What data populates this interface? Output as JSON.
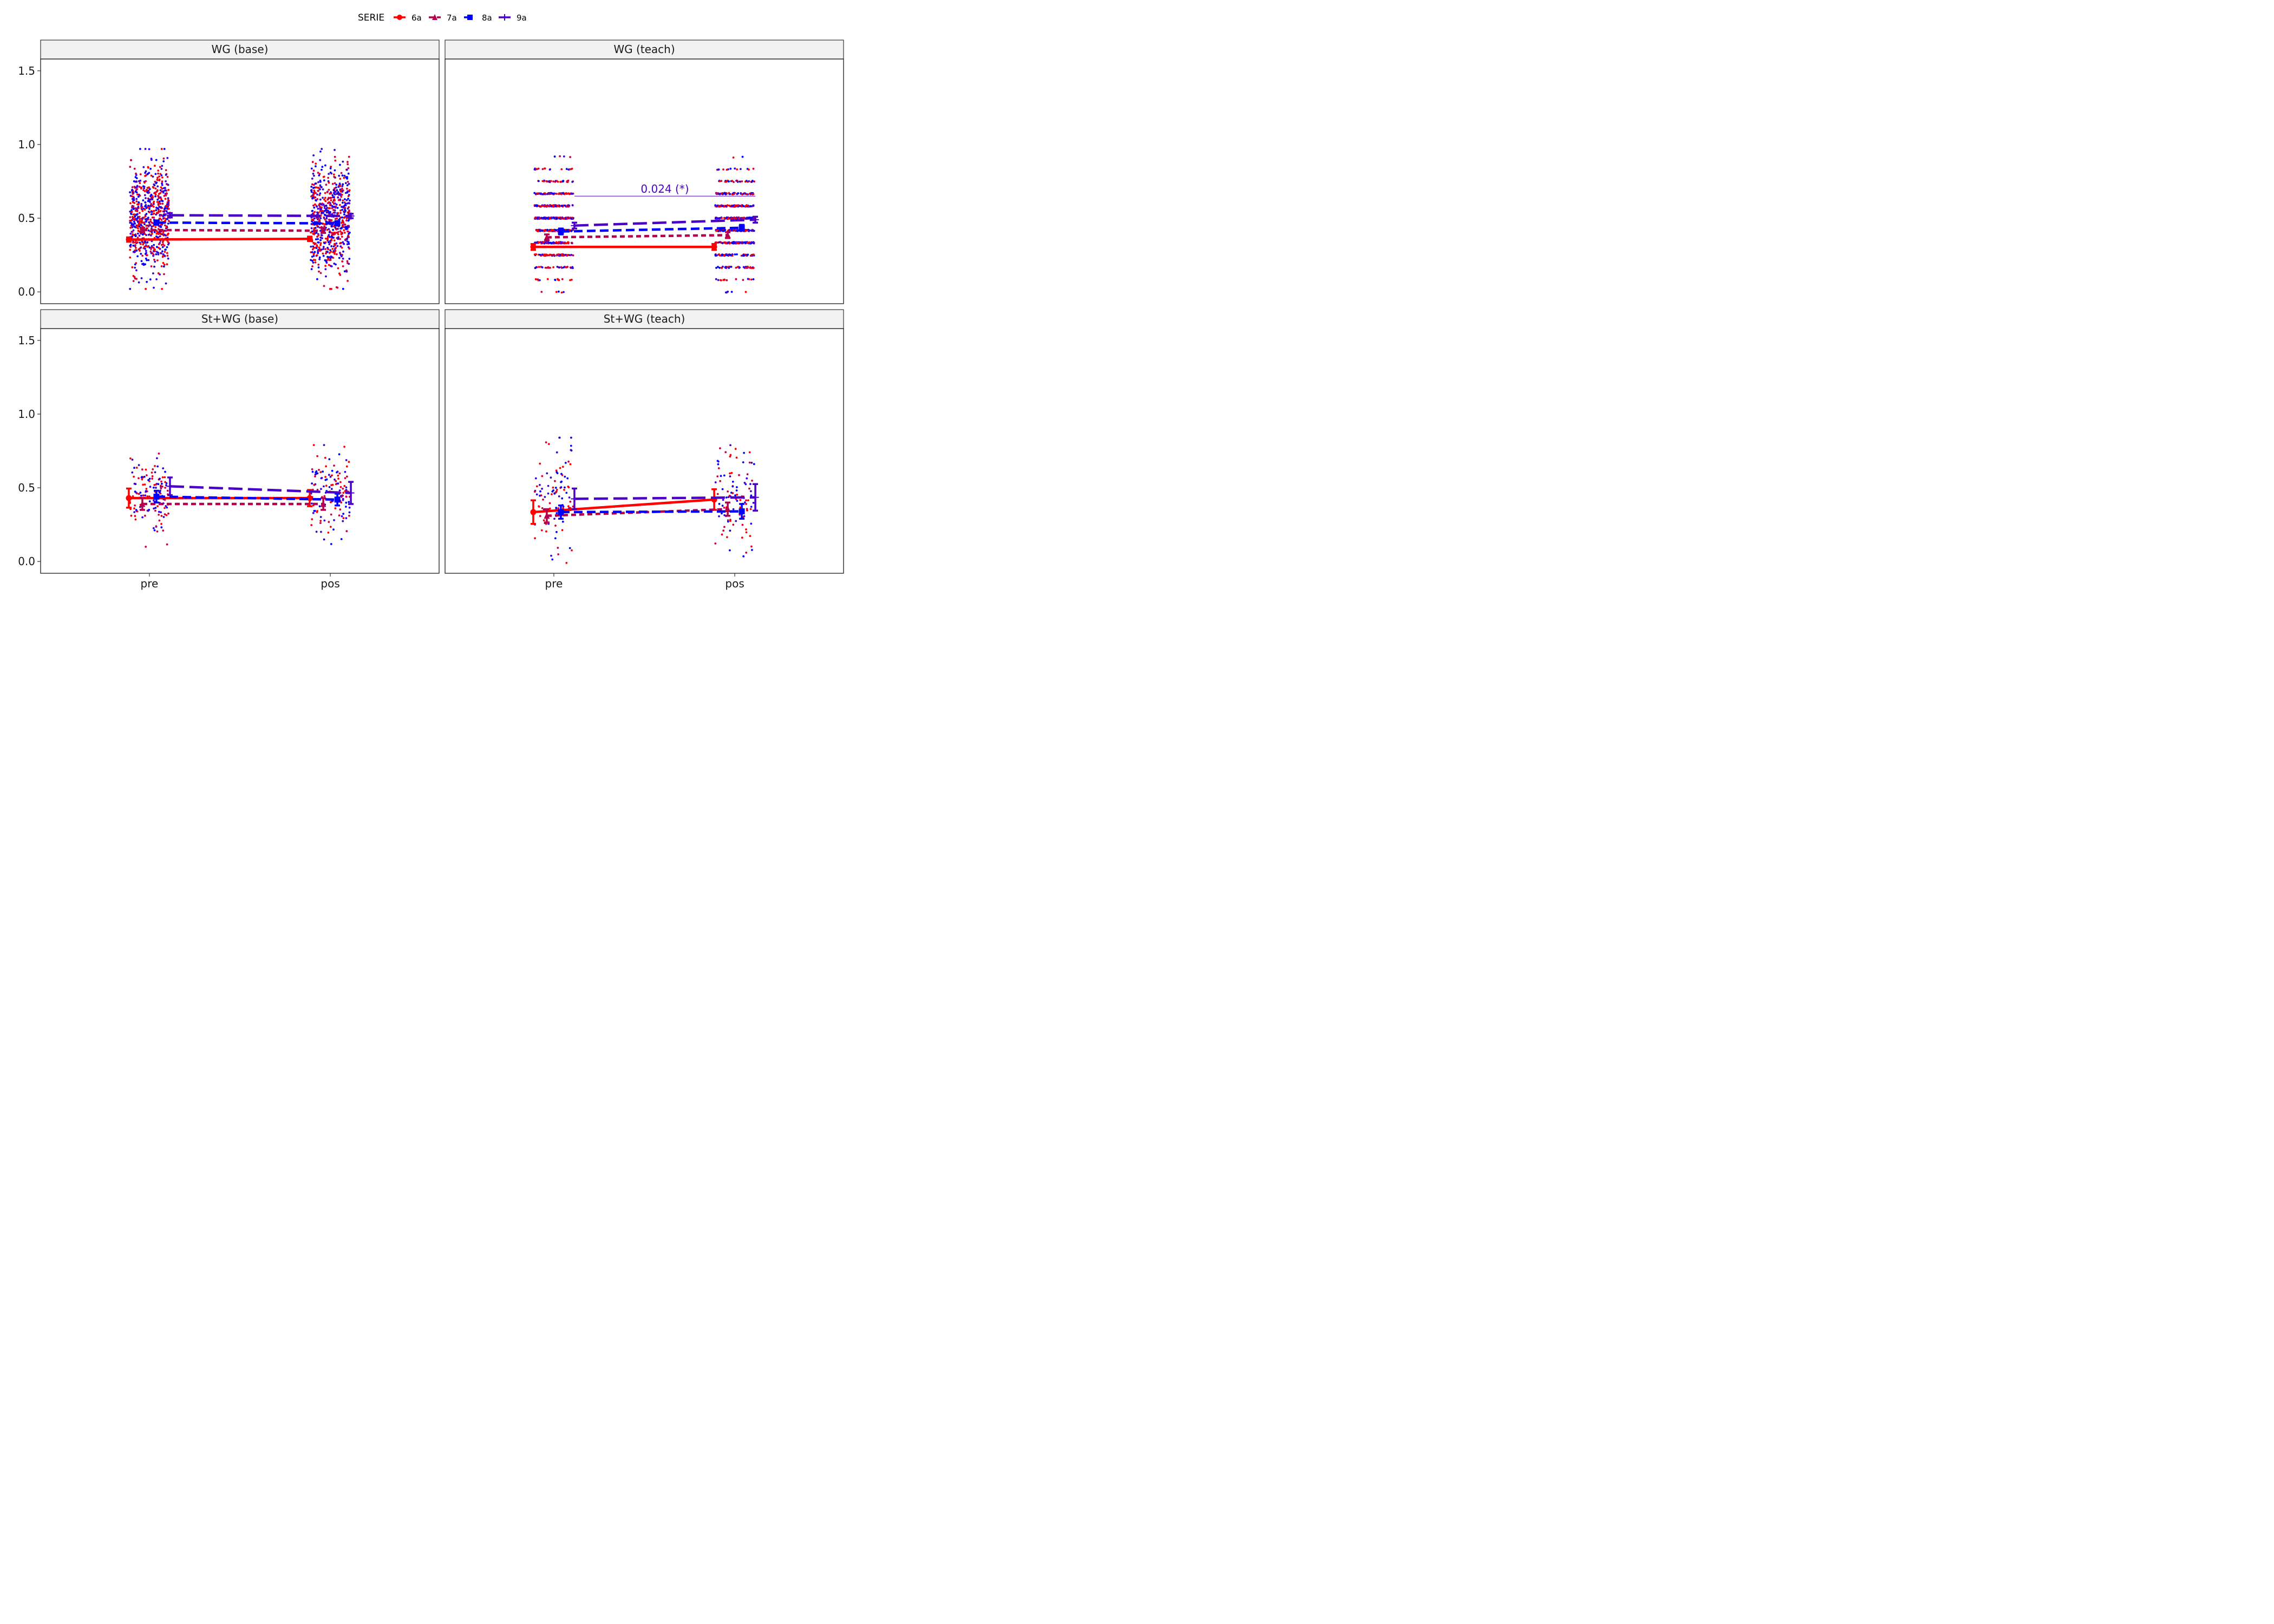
{
  "chart_data": {
    "type": "line",
    "legend": {
      "title": "SERIE",
      "placement": "top",
      "entries": [
        {
          "label": "6a",
          "color": "#ff0000",
          "shape": "circle",
          "linetype": "solid"
        },
        {
          "label": "7a",
          "color": "#b5004f",
          "shape": "triangle",
          "linetype": "dotted"
        },
        {
          "label": "8a",
          "color": "#0000ff",
          "shape": "square",
          "linetype": "dashed"
        },
        {
          "label": "9a",
          "color": "#4b00c8",
          "shape": "cross",
          "linetype": "longdash"
        }
      ]
    },
    "x_categories": [
      "pre",
      "pos"
    ],
    "y_ticks": [
      "0.0",
      "0.5",
      "1.0",
      "1.5"
    ],
    "ylim": [
      -0.08,
      1.58
    ],
    "grid": false,
    "panels": [
      {
        "title": "WG (base)",
        "series": [
          {
            "name": "6a",
            "values": [
              0.355,
              0.36
            ],
            "err": [
              0.015,
              0.015
            ]
          },
          {
            "name": "7a",
            "values": [
              0.42,
              0.415
            ],
            "err": [
              0.015,
              0.015
            ]
          },
          {
            "name": "8a",
            "values": [
              0.47,
              0.465
            ],
            "err": [
              0.015,
              0.015
            ]
          },
          {
            "name": "9a",
            "values": [
              0.52,
              0.515
            ],
            "err": [
              0.015,
              0.015
            ]
          }
        ],
        "points": {
          "y_range": [
            0.02,
            0.97
          ],
          "count_per_column": 700,
          "quantized": false
        }
      },
      {
        "title": "WG (teach)",
        "series": [
          {
            "name": "6a",
            "values": [
              0.305,
              0.305
            ],
            "err": [
              0.02,
              0.02
            ]
          },
          {
            "name": "7a",
            "values": [
              0.37,
              0.385
            ],
            "err": [
              0.02,
              0.02
            ]
          },
          {
            "name": "8a",
            "values": [
              0.41,
              0.435
            ],
            "err": [
              0.02,
              0.02
            ]
          },
          {
            "name": "9a",
            "values": [
              0.45,
              0.49
            ],
            "err": [
              0.02,
              0.02
            ]
          }
        ],
        "annotation": {
          "text": "0.024 (*)",
          "y": 0.65,
          "color": "#4b00c8"
        },
        "points": {
          "y_range": [
            0.0,
            0.92
          ],
          "count_per_column": 650,
          "quantized": true
        }
      },
      {
        "title": "St+WG (base)",
        "series": [
          {
            "name": "6a",
            "values": [
              0.43,
              0.43
            ],
            "err": [
              0.065,
              0.055
            ]
          },
          {
            "name": "7a",
            "values": [
              0.39,
              0.39
            ],
            "err": [
              0.04,
              0.04
            ]
          },
          {
            "name": "8a",
            "values": [
              0.44,
              0.42
            ],
            "err": [
              0.04,
              0.04
            ]
          },
          {
            "name": "9a",
            "values": [
              0.51,
              0.465
            ],
            "err": [
              0.06,
              0.075
            ]
          }
        ],
        "points": {
          "y_range": [
            0.1,
            0.79
          ],
          "count_per_column": 140,
          "quantized": false
        }
      },
      {
        "title": "St+WG (teach)",
        "series": [
          {
            "name": "6a",
            "values": [
              0.335,
              0.42
            ],
            "err": [
              0.08,
              0.07
            ]
          },
          {
            "name": "7a",
            "values": [
              0.31,
              0.355
            ],
            "err": [
              0.045,
              0.045
            ]
          },
          {
            "name": "8a",
            "values": [
              0.335,
              0.34
            ],
            "err": [
              0.045,
              0.05
            ]
          },
          {
            "name": "9a",
            "values": [
              0.425,
              0.435
            ],
            "err": [
              0.07,
              0.09
            ]
          }
        ],
        "points": {
          "y_range": [
            -0.01,
            0.84
          ],
          "count_per_column": 110,
          "quantized": false
        }
      }
    ]
  }
}
